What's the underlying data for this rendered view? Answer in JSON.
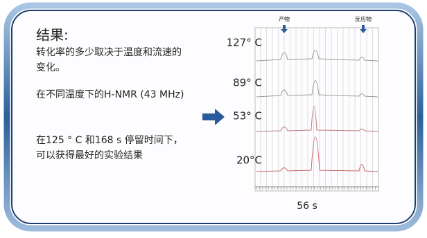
{
  "slide": {
    "title": "结果:",
    "summary_lines": [
      "转化率的多少取决于温度和流速的",
      "变化。"
    ],
    "spectra_caption": "在不同温度下的H-NMR (43 MHz)",
    "conclusion_lines": [
      "在125 ° C 和168 s 停留时间下，",
      "可以获得最好的实验结果"
    ],
    "spectrum": {
      "peak_labels": [
        "产物",
        "反应物"
      ],
      "temperatures": [
        "127° C",
        "89° C",
        "53° C",
        "20°C"
      ],
      "time_label": "56 s"
    }
  }
}
